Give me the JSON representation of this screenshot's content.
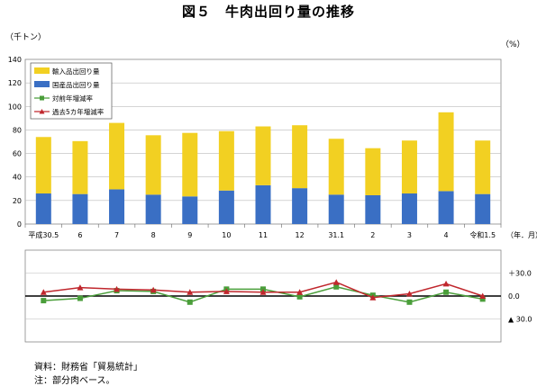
{
  "title": "図５　牛肉出回り量の推移",
  "unit_left": "（千トン）",
  "unit_right": "（%）",
  "x_unit": "（年．月）",
  "source": "資料：財務省「貿易統計」",
  "note": "注：部分肉ベース。",
  "colors": {
    "import": "#f2d022",
    "domestic": "#3a6fc4",
    "yoy": "#4a9e3a",
    "five_year": "#c0272d"
  },
  "chart_data": {
    "type": "bar",
    "categories": [
      "平成30.5",
      "6",
      "7",
      "8",
      "9",
      "10",
      "11",
      "12",
      "31.1",
      "2",
      "3",
      "4",
      "令和1.5"
    ],
    "stack_totals": [
      74,
      70.5,
      86,
      75.5,
      77.5,
      79,
      83,
      84,
      72.5,
      64.5,
      71,
      95,
      71
    ],
    "series": [
      {
        "name": "輸入品出回り量",
        "values": [
          48,
          45,
          56.5,
          50.5,
          54,
          50.5,
          50,
          53.5,
          47.5,
          40,
          45,
          67,
          45.5
        ]
      },
      {
        "name": "国産品出回り量",
        "values": [
          26,
          25.5,
          29.5,
          25,
          23.5,
          28.5,
          33,
          30.5,
          25,
          24.5,
          26,
          28,
          25.5
        ]
      }
    ],
    "ylim": [
      0,
      140
    ],
    "yticks": [
      0,
      20,
      40,
      60,
      80,
      100,
      120,
      140
    ],
    "line_panel": {
      "type": "line",
      "series": [
        {
          "name": "対前年増減率",
          "values": [
            -6,
            -3,
            7,
            6,
            -8,
            9,
            9,
            -1,
            12,
            1,
            -8,
            5,
            -4
          ]
        },
        {
          "name": "過去5カ年増減率",
          "values": [
            5,
            11,
            9,
            8,
            5,
            6,
            5,
            5,
            18,
            -2,
            3,
            16,
            0
          ]
        }
      ],
      "tick_labels": [
        "＋30.0",
        "0.0",
        "▲ 30.0"
      ],
      "ylim": [
        -60,
        60
      ]
    }
  }
}
